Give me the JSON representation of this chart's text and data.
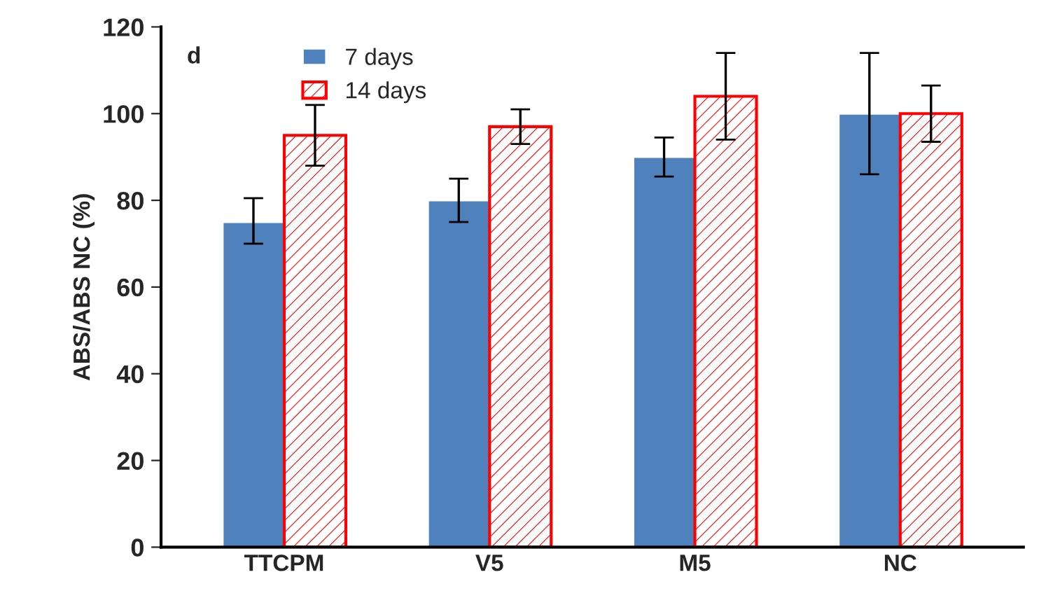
{
  "chart_data": {
    "type": "bar",
    "ylabel": "ABS/ABS NC (%)",
    "categories": [
      "TTCPM",
      "V5",
      "M5",
      "NC"
    ],
    "series": [
      {
        "name": "7 days",
        "color": "#4f81bd",
        "values": [
          75,
          80,
          90,
          100
        ],
        "errors": [
          [
            70,
            80.5
          ],
          [
            75,
            85
          ],
          [
            85.5,
            94.5
          ],
          [
            86,
            114
          ]
        ]
      },
      {
        "name": "14 days",
        "color": "#ff0000",
        "values": [
          95,
          97,
          104,
          100
        ],
        "errors": [
          [
            88,
            102
          ],
          [
            93,
            101
          ],
          [
            94,
            114
          ],
          [
            93.5,
            106.5
          ]
        ]
      }
    ],
    "ylim": [
      0,
      120
    ],
    "yticks": [
      0,
      20,
      40,
      60,
      80,
      100,
      120
    ],
    "grid": false,
    "legend": "top left",
    "annotations": [
      "d"
    ]
  }
}
